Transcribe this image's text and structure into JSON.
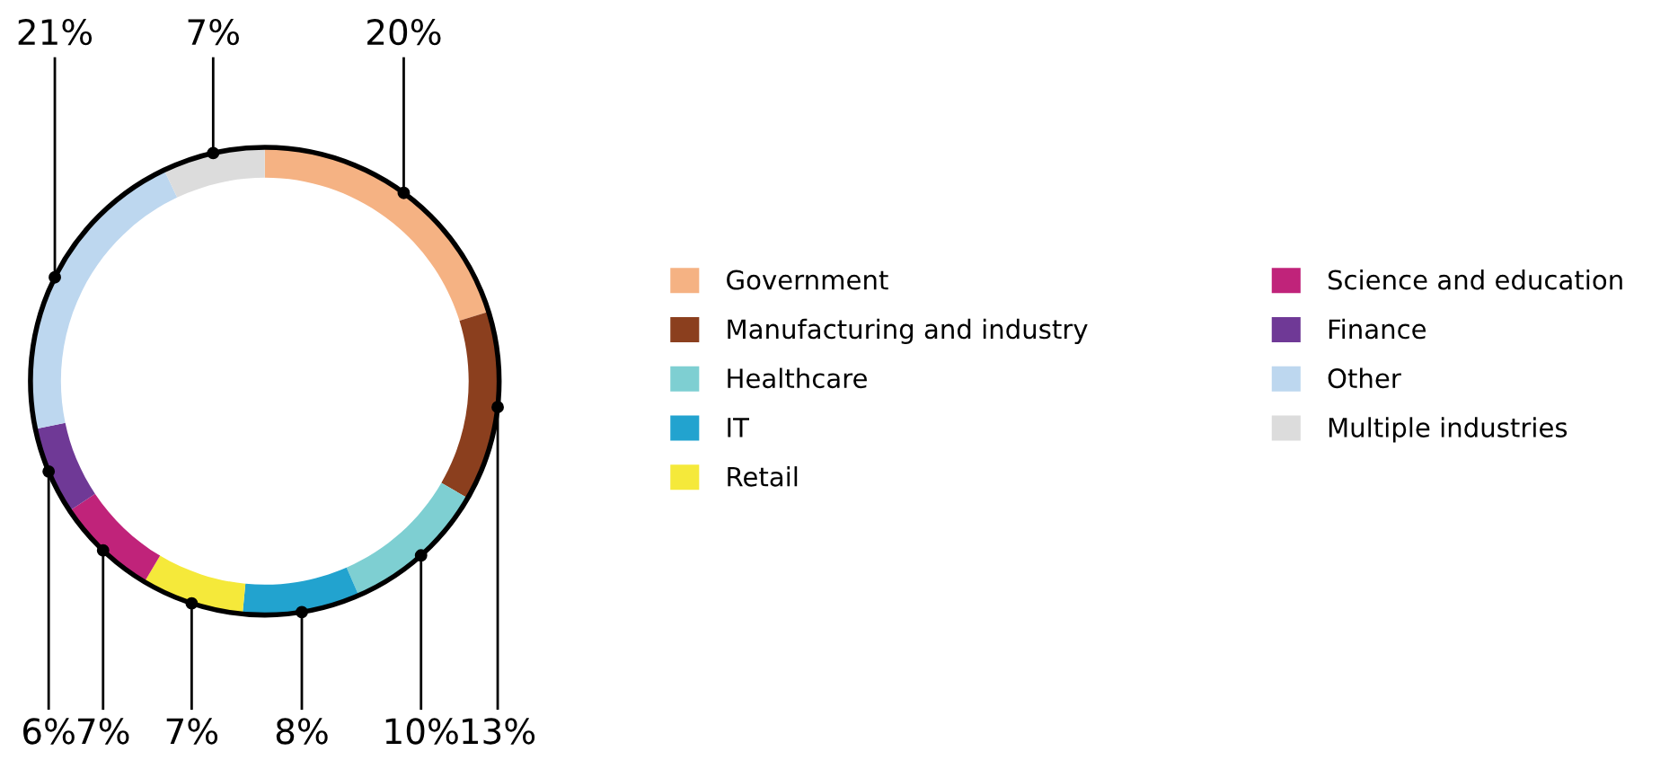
{
  "chart_data": {
    "type": "donut",
    "categories": [
      "Government",
      "Manufacturing and industry",
      "Healthcare",
      "IT",
      "Retail",
      "Science and education",
      "Finance",
      "Other",
      "Multiple industries"
    ],
    "values": [
      20,
      13,
      10,
      8,
      7,
      7,
      6,
      21,
      7
    ],
    "value_labels": [
      "20%",
      "13%",
      "10%",
      "8%",
      "7%",
      "7%",
      "6%",
      "21%",
      "7%"
    ],
    "colors": [
      "#f5b283",
      "#8b3f1e",
      "#7ecfd2",
      "#22a3cf",
      "#f5e93a",
      "#c0237a",
      "#6f3996",
      "#bdd7ef",
      "#dcdcdc"
    ],
    "legend": "right"
  }
}
